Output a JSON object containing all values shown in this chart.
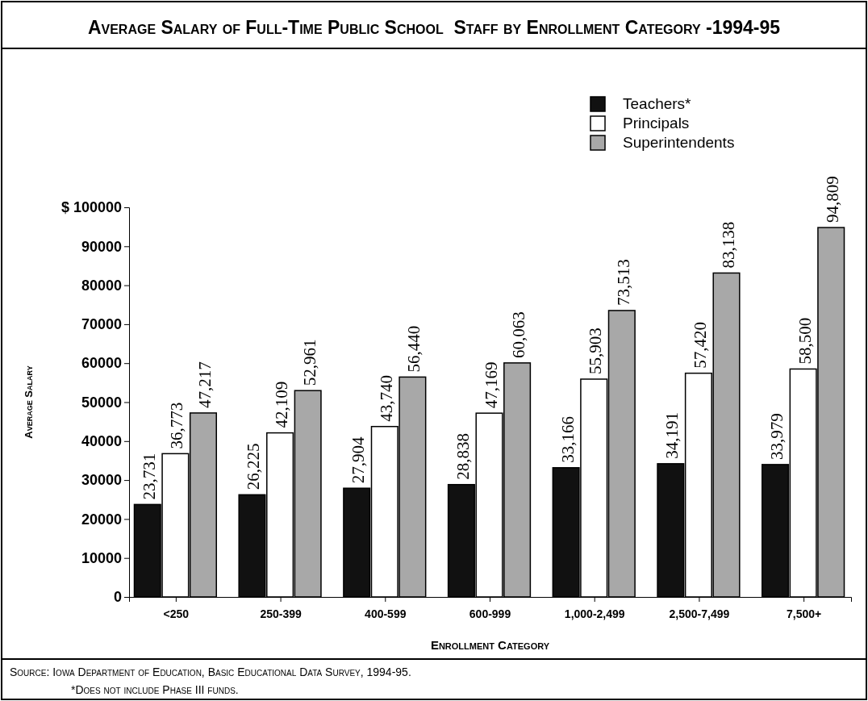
{
  "chart_data": {
    "type": "bar",
    "title": "Average Salary of Full-Time Public School  Staff by Enrollment Category -1994-95",
    "xlabel": "Enrollment Category",
    "ylabel": "Average Salary",
    "categories": [
      "<250",
      "250-399",
      "400-599",
      "600-999",
      "1,000-2,499",
      "2,500-7,499",
      "7,500+"
    ],
    "series": [
      {
        "name": "Teachers*",
        "color": "#111111",
        "values": [
          23731,
          26225,
          27904,
          28838,
          33166,
          34191,
          33979
        ],
        "value_labels": [
          "23,731",
          "26,225",
          "27,904",
          "28,838",
          "33,166",
          "34,191",
          "33,979"
        ]
      },
      {
        "name": "Principals",
        "color": "#ffffff",
        "values": [
          36773,
          42109,
          43740,
          47169,
          55903,
          57420,
          58500
        ],
        "value_labels": [
          "36,773",
          "42,109",
          "43,740",
          "47,169",
          "55,903",
          "57,420",
          "58,500"
        ]
      },
      {
        "name": "Superintendents",
        "color": "#a8a8a8",
        "values": [
          47217,
          52961,
          56440,
          60063,
          73513,
          83138,
          94809
        ],
        "value_labels": [
          "47,217",
          "52,961",
          "56,440",
          "60,063",
          "73,513",
          "83,138",
          "94,809"
        ]
      }
    ],
    "ylim": [
      0,
      100000
    ],
    "yticks": [
      0,
      10000,
      20000,
      30000,
      40000,
      50000,
      60000,
      70000,
      80000,
      90000,
      {
        "value": 100000,
        "label": "$ 100000"
      }
    ],
    "legend": "top right",
    "annotations": [
      "Source: Iowa Department of Education, Basic Educational Data Survey, 1994-95.",
      "*Does not include Phase III funds."
    ]
  }
}
